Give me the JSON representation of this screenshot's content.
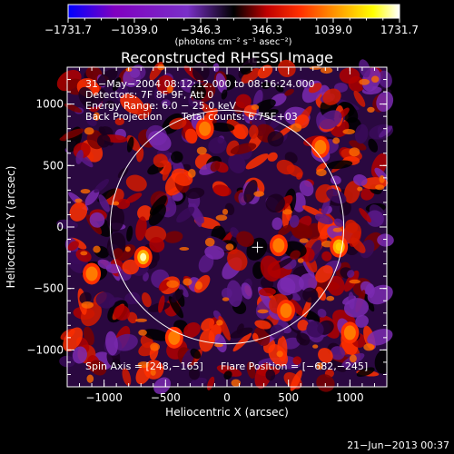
{
  "chart_data": {
    "type": "heatmap",
    "title": "Reconstructed RHESSI Image",
    "xlabel": "Heliocentric X (arcsec)",
    "ylabel": "Heliocentric Y (arcsec)",
    "xlim": [
      -1300,
      1300
    ],
    "ylim": [
      -1300,
      1300
    ],
    "x_ticks": [
      -1000,
      -500,
      0,
      500,
      1000
    ],
    "y_ticks": [
      1000,
      500,
      0,
      -500,
      -1000
    ],
    "x_tick_labels": [
      "−1000",
      "−500",
      "0",
      "500",
      "1000"
    ],
    "y_tick_labels": [
      "1000",
      "500",
      "0",
      "−500",
      "−1000"
    ],
    "colorbar": {
      "range": [
        -1731.7,
        1731.7
      ],
      "tick_labels": [
        "−1731.7",
        "−1039.0",
        "−346.3",
        "346.3",
        "1039.0",
        "1731.7"
      ],
      "unit_label": "(photons cm⁻² s⁻¹ asec⁻²)",
      "colors": [
        "#0000ff",
        "#8000c0",
        "#7a30c8",
        "#000000",
        "#c00000",
        "#ff3000",
        "#ff9000",
        "#ffff00",
        "#ffffff"
      ]
    },
    "annotations": [
      "31−May−2004 08:12:12.000 to 08:16:24.000",
      "Detectors: 7F 8F 9F, Att 0",
      "Energy Range: 6.0 − 25.0 keV",
      "Back Projection",
      "Total counts: 6.75E+03"
    ],
    "footer": {
      "spin_axis": "Spin Axis = [248,−165]",
      "flare_position": "Flare Position = [−682,−245]"
    },
    "solar_disk": {
      "center": [
        0,
        0
      ],
      "radius": 950
    },
    "marker": {
      "x": 248,
      "y": -165
    },
    "bright_sources": [
      {
        "x": -682,
        "y": -245,
        "value": 1700
      },
      {
        "x": 910,
        "y": -160,
        "value": 1500
      },
      {
        "x": -180,
        "y": 800,
        "value": 1200
      },
      {
        "x": 480,
        "y": -680,
        "value": 1250
      },
      {
        "x": -1100,
        "y": -380,
        "value": 1150
      },
      {
        "x": 760,
        "y": 650,
        "value": 1200
      },
      {
        "x": 1000,
        "y": -860,
        "value": 1100
      },
      {
        "x": -430,
        "y": -900,
        "value": 1100
      },
      {
        "x": 420,
        "y": -150,
        "value": 1000
      }
    ]
  },
  "timestamp": "21−Jun−2013 00:37"
}
